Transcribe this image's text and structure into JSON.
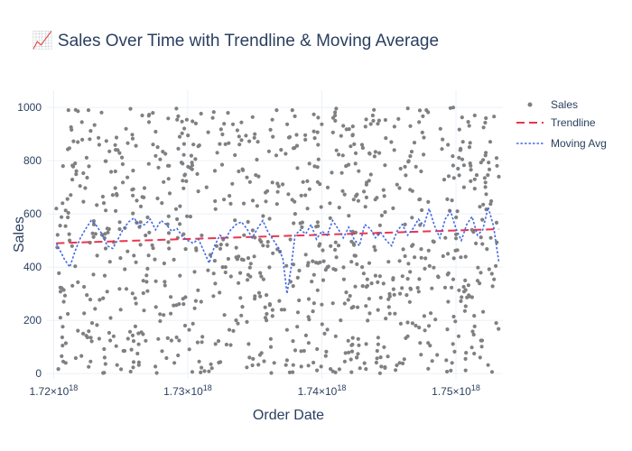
{
  "chart_data": {
    "type": "scatter",
    "title": "📈 Sales Over Time with Trendline & Moving Average",
    "xlabel": "Order Date",
    "ylabel": "Sales",
    "x_range": [
      1.7195e+18,
      1.7535e+18
    ],
    "ylim": [
      -20,
      1065
    ],
    "x_ticks": [
      {
        "value": 1.72e+18,
        "mantissa": "1.72×10",
        "exp": "18"
      },
      {
        "value": 1.73e+18,
        "mantissa": "1.73×10",
        "exp": "18"
      },
      {
        "value": 1.74e+18,
        "mantissa": "1.74×10",
        "exp": "18"
      },
      {
        "value": 1.75e+18,
        "mantissa": "1.75×10",
        "exp": "18"
      }
    ],
    "y_ticks": [
      0,
      200,
      400,
      600,
      800,
      1000
    ],
    "grid": true,
    "legend_position": "top-right",
    "colors": {
      "sales": "#808080",
      "trendline": "#e8364f",
      "moving_avg": "#4169e1"
    },
    "series": [
      {
        "name": "Sales",
        "mode": "markers",
        "note": "About 1000 individual orders, uniformly spread in x between about 1.7202e18 and 1.7532e18 with sales values spread roughly uniformly between 0 and 1000.",
        "points": [
          [
            1.7202e+18,
            620
          ],
          [
            1.7205e+18,
            210
          ],
          [
            1.7207e+18,
            780
          ],
          [
            1.7209e+18,
            40
          ],
          [
            1.7211e+18,
            990
          ],
          [
            1.7214e+18,
            330
          ],
          [
            1.7218e+18,
            870
          ],
          [
            1.7222e+18,
            150
          ],
          [
            1.7226e+18,
            990
          ],
          [
            1.723e+18,
            560
          ],
          [
            1.7234e+18,
            860
          ],
          [
            1.7238e+18,
            60
          ],
          [
            1.7242e+18,
            420
          ],
          [
            1.7246e+18,
            760
          ],
          [
            1.725e+18,
            240
          ],
          [
            1.7254e+18,
            920
          ],
          [
            1.7258e+18,
            90
          ],
          [
            1.7262e+18,
            650
          ],
          [
            1.7266e+18,
            970
          ],
          [
            1.727e+18,
            310
          ],
          [
            1.7274e+18,
            980
          ],
          [
            1.7278e+18,
            130
          ],
          [
            1.7282e+18,
            720
          ],
          [
            1.7286e+18,
            470
          ],
          [
            1.729e+18,
            40
          ],
          [
            1.7294e+18,
            890
          ],
          [
            1.7298e+18,
            180
          ],
          [
            1.7302e+18,
            590
          ],
          [
            1.7306e+18,
            940
          ],
          [
            1.731e+18,
            270
          ],
          [
            1.7314e+18,
            700
          ],
          [
            1.7318e+18,
            20
          ],
          [
            1.7322e+18,
            830
          ],
          [
            1.7326e+18,
            400
          ],
          [
            1.733e+18,
            980
          ],
          [
            1.7334e+18,
            160
          ],
          [
            1.7338e+18,
            760
          ],
          [
            1.7342e+18,
            520
          ],
          [
            1.7346e+18,
            60
          ],
          [
            1.735e+18,
            900
          ],
          [
            1.7354e+18,
            290
          ],
          [
            1.7358e+18,
            680
          ],
          [
            1.7362e+18,
            100
          ],
          [
            1.7366e+18,
            820
          ],
          [
            1.737e+18,
            240
          ],
          [
            1.7374e+18,
            50
          ],
          [
            1.7378e+18,
            990
          ],
          [
            1.7382e+18,
            360
          ],
          [
            1.7386e+18,
            720
          ],
          [
            1.739e+18,
            30
          ],
          [
            1.7394e+18,
            910
          ],
          [
            1.7398e+18,
            480
          ],
          [
            1.7402e+18,
            150
          ],
          [
            1.7406e+18,
            640
          ],
          [
            1.741e+18,
            950
          ],
          [
            1.7414e+18,
            200
          ],
          [
            1.7418e+18,
            780
          ],
          [
            1.7422e+18,
            420
          ],
          [
            1.7426e+18,
            60
          ],
          [
            1.743e+18,
            860
          ],
          [
            1.7434e+18,
            330
          ],
          [
            1.7438e+18,
            970
          ],
          [
            1.7442e+18,
            110
          ],
          [
            1.7446e+18,
            690
          ],
          [
            1.745e+18,
            250
          ],
          [
            1.7454e+18,
            840
          ],
          [
            1.7458e+18,
            40
          ],
          [
            1.7462e+18,
            560
          ],
          [
            1.7466e+18,
            930
          ],
          [
            1.747e+18,
            180
          ],
          [
            1.7474e+18,
            760
          ],
          [
            1.7478e+18,
            990
          ],
          [
            1.7482e+18,
            320
          ],
          [
            1.7486e+18,
            70
          ],
          [
            1.749e+18,
            880
          ],
          [
            1.7494e+18,
            450
          ],
          [
            1.7498e+18,
            1000
          ],
          [
            1.7502e+18,
            140
          ],
          [
            1.7506e+18,
            700
          ],
          [
            1.751e+18,
            290
          ],
          [
            1.7514e+18,
            970
          ],
          [
            1.7518e+18,
            60
          ],
          [
            1.7522e+18,
            820
          ],
          [
            1.7526e+18,
            510
          ],
          [
            1.753e+18,
            190
          ],
          [
            1.7532e+18,
            740
          ]
        ]
      },
      {
        "name": "Trendline",
        "mode": "lines",
        "dash": "dash",
        "x": [
          1.7202e+18,
          1.7532e+18
        ],
        "y": [
          490,
          543
        ]
      },
      {
        "name": "Moving Avg",
        "mode": "lines",
        "dash": "dot",
        "x": [
          1.7202e+18,
          1.7208e+18,
          1.7212e+18,
          1.7216e+18,
          1.722e+18,
          1.7224e+18,
          1.7228e+18,
          1.7232e+18,
          1.7236e+18,
          1.724e+18,
          1.7244e+18,
          1.7248e+18,
          1.7252e+18,
          1.7256e+18,
          1.726e+18,
          1.7264e+18,
          1.7268e+18,
          1.7272e+18,
          1.7276e+18,
          1.728e+18,
          1.7284e+18,
          1.7288e+18,
          1.7292e+18,
          1.7296e+18,
          1.73e+18,
          1.7304e+18,
          1.7308e+18,
          1.7312e+18,
          1.7316e+18,
          1.732e+18,
          1.7324e+18,
          1.7328e+18,
          1.7332e+18,
          1.7336e+18,
          1.734e+18,
          1.7344e+18,
          1.7348e+18,
          1.7352e+18,
          1.7356e+18,
          1.736e+18,
          1.7364e+18,
          1.7368e+18,
          1.7371e+18,
          1.7374e+18,
          1.7377e+18,
          1.738e+18,
          1.7384e+18,
          1.7388e+18,
          1.7392e+18,
          1.7396e+18,
          1.74e+18,
          1.7404e+18,
          1.7408e+18,
          1.7412e+18,
          1.7416e+18,
          1.742e+18,
          1.7424e+18,
          1.7428e+18,
          1.7432e+18,
          1.7436e+18,
          1.744e+18,
          1.7444e+18,
          1.7448e+18,
          1.7452e+18,
          1.7456e+18,
          1.746e+18,
          1.7464e+18,
          1.7468e+18,
          1.7472e+18,
          1.7476e+18,
          1.748e+18,
          1.7484e+18,
          1.7488e+18,
          1.7492e+18,
          1.7496e+18,
          1.75e+18,
          1.7504e+18,
          1.7508e+18,
          1.7512e+18,
          1.7516e+18,
          1.752e+18,
          1.7524e+18,
          1.7528e+18,
          1.7532e+18
        ],
        "y": [
          490,
          430,
          400,
          460,
          510,
          545,
          575,
          555,
          525,
          480,
          470,
          505,
          545,
          570,
          585,
          555,
          560,
          580,
          540,
          575,
          560,
          535,
          545,
          515,
          500,
          490,
          505,
          460,
          415,
          480,
          520,
          505,
          540,
          560,
          570,
          545,
          510,
          545,
          575,
          530,
          500,
          470,
          430,
          300,
          395,
          520,
          540,
          525,
          560,
          505,
          535,
          520,
          575,
          545,
          510,
          550,
          505,
          480,
          560,
          545,
          510,
          530,
          500,
          480,
          535,
          560,
          520,
          545,
          580,
          555,
          620,
          555,
          510,
          580,
          610,
          545,
          500,
          560,
          590,
          520,
          540,
          625,
          555,
          420
        ]
      }
    ]
  }
}
